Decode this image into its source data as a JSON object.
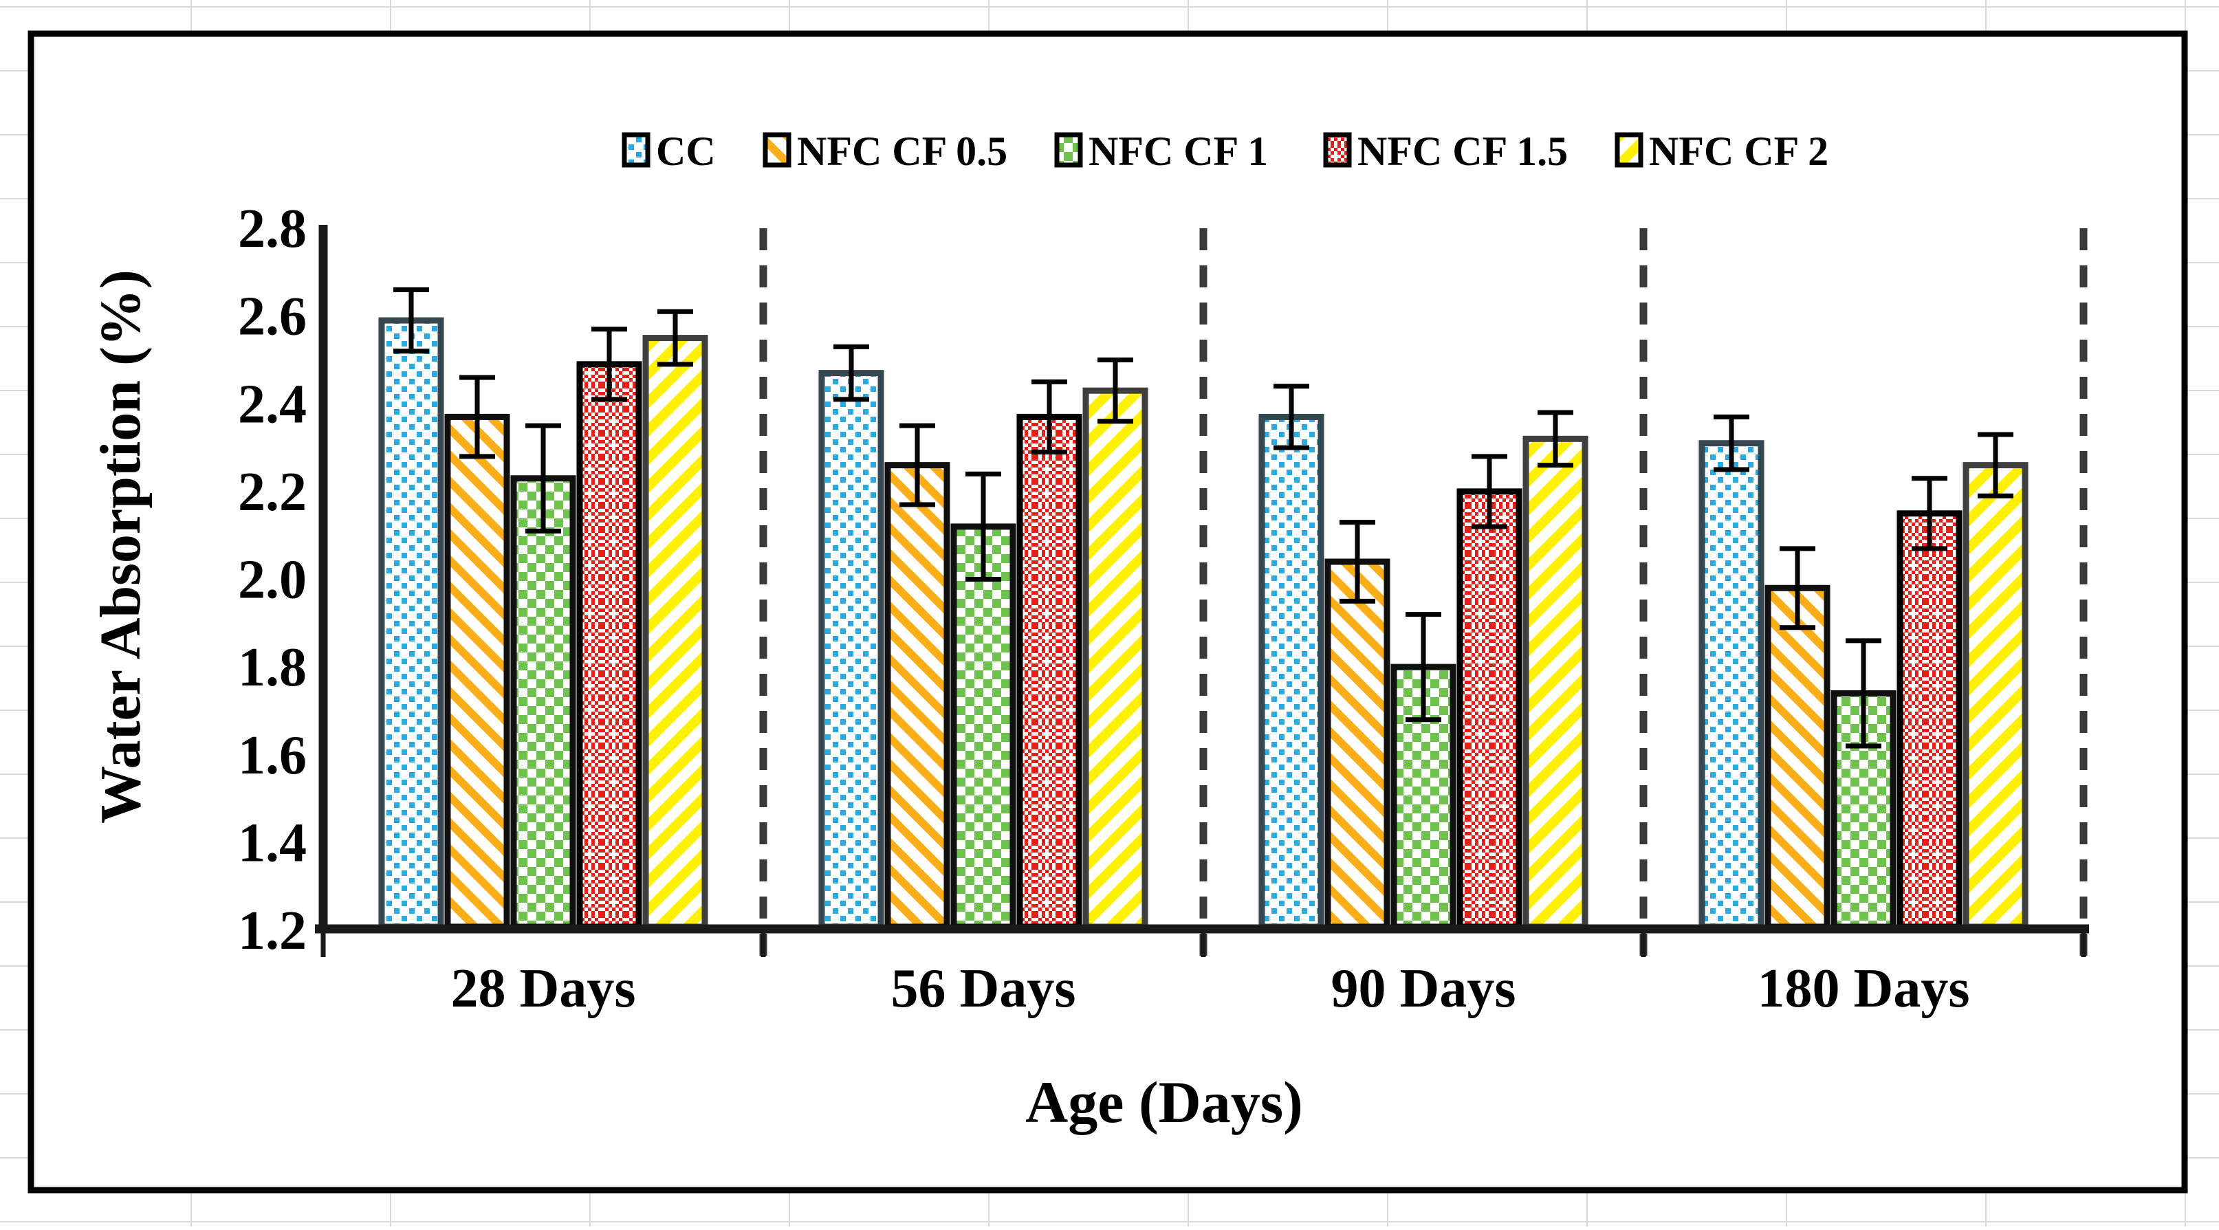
{
  "chart_data": {
    "type": "bar",
    "title": "",
    "xlabel": "Age (Days)",
    "ylabel": "Water Absorption (%)",
    "categories": [
      "28 Days",
      "56 Days",
      "90 Days",
      "180 Days"
    ],
    "series": [
      {
        "name": "CC",
        "color": "#29abe2",
        "border": "#37474f",
        "pattern": "dots",
        "values": [
          2.59,
          2.47,
          2.37,
          2.31
        ],
        "errors": [
          0.07,
          0.06,
          0.07,
          0.06
        ]
      },
      {
        "name": "NFC CF 0.5",
        "color": "#fbae17",
        "border": "#101010",
        "pattern": "diag-down",
        "values": [
          2.37,
          2.26,
          2.04,
          1.98
        ],
        "errors": [
          0.09,
          0.09,
          0.09,
          0.09
        ]
      },
      {
        "name": "NFC CF 1",
        "color": "#6fc24e",
        "border": "#101010",
        "pattern": "checker",
        "values": [
          2.23,
          2.12,
          1.8,
          1.74
        ],
        "errors": [
          0.12,
          0.12,
          0.12,
          0.12
        ]
      },
      {
        "name": "NFC CF 1.5",
        "color": "#e32119",
        "border": "#000000",
        "pattern": "weave",
        "values": [
          2.49,
          2.37,
          2.2,
          2.15
        ],
        "errors": [
          0.08,
          0.08,
          0.08,
          0.08
        ]
      },
      {
        "name": "NFC CF 2",
        "color": "#fff100",
        "border": "#3f3f3f",
        "pattern": "diag-up",
        "values": [
          2.55,
          2.43,
          2.32,
          2.26
        ],
        "errors": [
          0.06,
          0.07,
          0.06,
          0.07
        ]
      }
    ],
    "ylim": [
      1.2,
      2.8
    ],
    "ytick_step": 0.2,
    "yticks": [
      "2.8",
      "2.6",
      "2.4",
      "2.2",
      "2.0",
      "1.8",
      "1.6",
      "1.4",
      "1.2"
    ],
    "legend_position": "top-center",
    "grid": false,
    "group_separators": "dashed-vertical",
    "error_bars": true,
    "frame_color": "#000000",
    "separator_color": "#3a3a3a",
    "background_grid_color": "#d9d9d9"
  }
}
